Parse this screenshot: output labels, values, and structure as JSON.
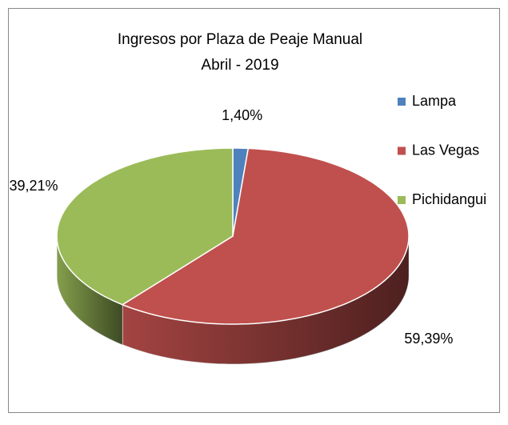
{
  "chart_data": {
    "type": "pie3d",
    "title": "Ingresos por Plaza de Peaje Manual",
    "subtitle": "Abril - 2019",
    "categories": [
      "Lampa",
      "Las Vegas",
      "Pichidangui"
    ],
    "values": [
      1.4,
      59.39,
      39.21
    ],
    "value_labels": [
      "1,40%",
      "59,39%",
      "39,21%"
    ],
    "colors": [
      "#4f81bd",
      "#c0504d",
      "#9bbb59"
    ],
    "legend": "right"
  }
}
